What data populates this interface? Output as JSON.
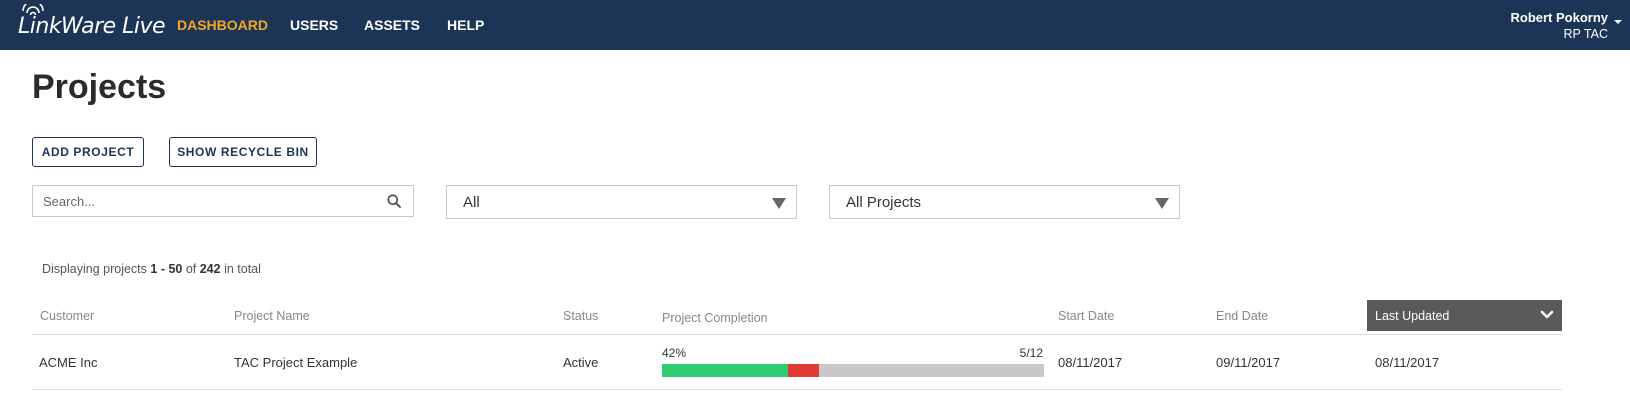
{
  "app": {
    "logo_text": "LinkWare Live"
  },
  "nav": {
    "items": [
      {
        "label": "DASHBOARD",
        "active": true
      },
      {
        "label": "USERS",
        "active": false
      },
      {
        "label": "ASSETS",
        "active": false
      },
      {
        "label": "HELP",
        "active": false
      }
    ]
  },
  "user": {
    "name": "Robert Pokorny",
    "org": "RP TAC"
  },
  "page": {
    "title": "Projects"
  },
  "toolbar": {
    "add_project_label": "ADD PROJECT",
    "show_recycle_bin_label": "SHOW RECYCLE BIN"
  },
  "filters": {
    "search_placeholder": "Search...",
    "search_value": "",
    "status_filter_value": "All",
    "project_filter_value": "All Projects"
  },
  "summary": {
    "prefix": "Displaying projects ",
    "range": "1 - 50",
    "middle": " of ",
    "total": "242",
    "suffix": " in total"
  },
  "table": {
    "columns": {
      "customer": "Customer",
      "project_name": "Project Name",
      "status": "Status",
      "completion": "Project Completion",
      "start_date": "Start Date",
      "end_date": "End Date",
      "last_updated": "Last Updated"
    },
    "rows": [
      {
        "customer": "ACME Inc",
        "project_name": "TAC Project Example",
        "status": "Active",
        "completion_percent": "42%",
        "completion_fraction": "5/12",
        "completion_pass": 0.33,
        "completion_fail": 0.08,
        "start_date": "08/11/2017",
        "end_date": "09/11/2017",
        "last_updated": "08/11/2017"
      }
    ]
  },
  "colors": {
    "header_bg": "#1c3557",
    "nav_active": "#f5a623",
    "pass": "#2ecc71",
    "fail": "#e03a33",
    "remaining": "#c8c8c8",
    "sorted_header_bg": "#5a5a5a"
  }
}
